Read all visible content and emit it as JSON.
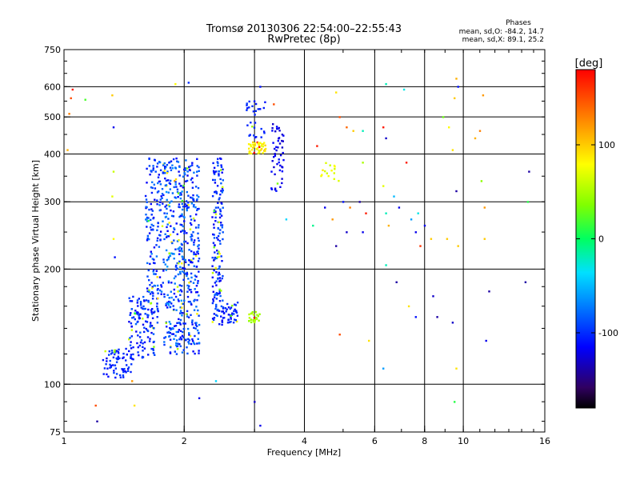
{
  "chart_data": {
    "type": "scatter",
    "title": "Tromsø 20130306 22:54:00–22:55:43",
    "subtitle": "RwPretec (8p)",
    "xlabel": "Frequency [MHz]",
    "ylabel": "Stationary phase Virtual Height [km]",
    "x_scale": "log2",
    "y_scale": "log",
    "xlim": [
      1,
      16
    ],
    "ylim": [
      75,
      750
    ],
    "x_ticks": [
      {
        "value": 1,
        "label": "1"
      },
      {
        "value": 2,
        "label": "2"
      },
      {
        "value": 4,
        "label": "4"
      },
      {
        "value": 6,
        "label": "6"
      },
      {
        "value": 8,
        "label": "8"
      },
      {
        "value": 10,
        "label": "10"
      },
      {
        "value": 16,
        "label": "16"
      }
    ],
    "y_ticks": [
      {
        "value": 75,
        "label": "75"
      },
      {
        "value": 100,
        "label": "100"
      },
      {
        "value": 200,
        "label": "200"
      },
      {
        "value": 300,
        "label": "300"
      },
      {
        "value": 400,
        "label": "400"
      },
      {
        "value": 500,
        "label": "500"
      },
      {
        "value": 600,
        "label": "600"
      },
      {
        "value": 750,
        "label": "750"
      }
    ],
    "x_grid": [
      2,
      3,
      4,
      6,
      8,
      10
    ],
    "y_grid": [
      100,
      200,
      300,
      400,
      500,
      600
    ],
    "grid": true,
    "phase_stats": {
      "header": "Phases",
      "o_line": "mean, sd,O: -84.2, 14.7",
      "x_line": "mean, sd,X:  89.1, 25.2"
    },
    "colorbar": {
      "label": "[deg]",
      "range": [
        -180,
        180
      ],
      "ticks": [
        {
          "value": 100,
          "label": "100"
        },
        {
          "value": 0,
          "label": "0"
        },
        {
          "value": -100,
          "label": "-100"
        }
      ]
    },
    "clusters": [
      {
        "f": [
          1.25,
          1.48
        ],
        "h": [
          104,
          124
        ],
        "n": 70,
        "phase": [
          -120,
          -90
        ]
      },
      {
        "f": [
          1.45,
          1.72
        ],
        "h": [
          116,
          170
        ],
        "n": 140,
        "phase": [
          -120,
          -80
        ]
      },
      {
        "f": [
          1.6,
          1.78
        ],
        "h": [
          170,
          390
        ],
        "n": 150,
        "phase": [
          -120,
          -70
        ]
      },
      {
        "f": [
          1.78,
          1.98
        ],
        "h": [
          120,
          390
        ],
        "n": 260,
        "phase": [
          -120,
          -60
        ]
      },
      {
        "f": [
          1.98,
          2.18
        ],
        "h": [
          120,
          390
        ],
        "n": 230,
        "phase": [
          -120,
          -70
        ]
      },
      {
        "f": [
          2.35,
          2.5
        ],
        "h": [
          140,
          390
        ],
        "n": 170,
        "phase": [
          -120,
          -80
        ]
      },
      {
        "f": [
          2.5,
          2.72
        ],
        "h": [
          145,
          165
        ],
        "n": 40,
        "phase": [
          -115,
          -90
        ]
      },
      {
        "f": [
          2.9,
          3.1
        ],
        "h": [
          145,
          155
        ],
        "n": 25,
        "phase": [
          40,
          60
        ]
      },
      {
        "f": [
          2.9,
          3.2
        ],
        "h": [
          400,
          430
        ],
        "n": 45,
        "phase": [
          70,
          100
        ]
      },
      {
        "f": [
          2.85,
          3.2
        ],
        "h": [
          440,
          560
        ],
        "n": 30,
        "phase": [
          -110,
          -95
        ]
      },
      {
        "f": [
          3.3,
          3.55
        ],
        "h": [
          320,
          480
        ],
        "n": 50,
        "phase": [
          -130,
          -110
        ]
      },
      {
        "f": [
          4.4,
          4.9
        ],
        "h": [
          340,
          380
        ],
        "n": 15,
        "phase": [
          60,
          90
        ]
      }
    ],
    "points": [
      {
        "f": 1.05,
        "h": 590,
        "phase": 170
      },
      {
        "f": 1.04,
        "h": 560,
        "phase": 150
      },
      {
        "f": 1.03,
        "h": 510,
        "phase": 130
      },
      {
        "f": 1.02,
        "h": 410,
        "phase": 110
      },
      {
        "f": 1.13,
        "h": 555,
        "phase": 20
      },
      {
        "f": 1.2,
        "h": 88,
        "phase": 150
      },
      {
        "f": 1.21,
        "h": 80,
        "phase": -140
      },
      {
        "f": 1.32,
        "h": 570,
        "phase": 100
      },
      {
        "f": 1.33,
        "h": 470,
        "phase": -120
      },
      {
        "f": 1.33,
        "h": 360,
        "phase": 60
      },
      {
        "f": 1.32,
        "h": 310,
        "phase": 70
      },
      {
        "f": 1.33,
        "h": 240,
        "phase": 80
      },
      {
        "f": 1.34,
        "h": 215,
        "phase": -110
      },
      {
        "f": 1.5,
        "h": 88,
        "phase": 90
      },
      {
        "f": 1.48,
        "h": 102,
        "phase": 120
      },
      {
        "f": 1.9,
        "h": 610,
        "phase": 80
      },
      {
        "f": 2.05,
        "h": 615,
        "phase": -100
      },
      {
        "f": 2.18,
        "h": 92,
        "phase": -120
      },
      {
        "f": 2.4,
        "h": 102,
        "phase": -40
      },
      {
        "f": 3.0,
        "h": 90,
        "phase": -130
      },
      {
        "f": 3.1,
        "h": 78,
        "phase": -120
      },
      {
        "f": 3.1,
        "h": 600,
        "phase": -110
      },
      {
        "f": 3.35,
        "h": 540,
        "phase": 150
      },
      {
        "f": 3.6,
        "h": 270,
        "phase": -40
      },
      {
        "f": 4.3,
        "h": 420,
        "phase": 170
      },
      {
        "f": 4.8,
        "h": 580,
        "phase": 90
      },
      {
        "f": 4.9,
        "h": 500,
        "phase": 150
      },
      {
        "f": 5.1,
        "h": 470,
        "phase": 140
      },
      {
        "f": 5.3,
        "h": 460,
        "phase": 100
      },
      {
        "f": 4.2,
        "h": 260,
        "phase": -10
      },
      {
        "f": 4.5,
        "h": 290,
        "phase": -120
      },
      {
        "f": 4.7,
        "h": 270,
        "phase": 120
      },
      {
        "f": 4.8,
        "h": 230,
        "phase": -140
      },
      {
        "f": 5.0,
        "h": 300,
        "phase": -110
      },
      {
        "f": 5.1,
        "h": 250,
        "phase": -130
      },
      {
        "f": 5.2,
        "h": 290,
        "phase": 130
      },
      {
        "f": 4.9,
        "h": 135,
        "phase": 150
      },
      {
        "f": 5.6,
        "h": 460,
        "phase": -20
      },
      {
        "f": 5.6,
        "h": 380,
        "phase": 50
      },
      {
        "f": 5.5,
        "h": 300,
        "phase": -140
      },
      {
        "f": 5.6,
        "h": 250,
        "phase": -120
      },
      {
        "f": 5.7,
        "h": 280,
        "phase": 170
      },
      {
        "f": 5.8,
        "h": 130,
        "phase": 90
      },
      {
        "f": 6.4,
        "h": 610,
        "phase": -20
      },
      {
        "f": 6.3,
        "h": 470,
        "phase": 170
      },
      {
        "f": 6.4,
        "h": 440,
        "phase": -130
      },
      {
        "f": 6.3,
        "h": 330,
        "phase": 70
      },
      {
        "f": 6.4,
        "h": 280,
        "phase": -20
      },
      {
        "f": 6.5,
        "h": 260,
        "phase": 110
      },
      {
        "f": 6.4,
        "h": 205,
        "phase": -20
      },
      {
        "f": 6.3,
        "h": 110,
        "phase": -60
      },
      {
        "f": 6.7,
        "h": 310,
        "phase": -50
      },
      {
        "f": 6.9,
        "h": 290,
        "phase": -120
      },
      {
        "f": 6.8,
        "h": 185,
        "phase": -140
      },
      {
        "f": 7.1,
        "h": 590,
        "phase": -30
      },
      {
        "f": 7.2,
        "h": 380,
        "phase": 170
      },
      {
        "f": 7.4,
        "h": 270,
        "phase": -60
      },
      {
        "f": 7.6,
        "h": 250,
        "phase": -120
      },
      {
        "f": 7.7,
        "h": 280,
        "phase": -30
      },
      {
        "f": 7.8,
        "h": 230,
        "phase": 160
      },
      {
        "f": 7.6,
        "h": 150,
        "phase": -110
      },
      {
        "f": 7.3,
        "h": 160,
        "phase": 90
      },
      {
        "f": 8.0,
        "h": 260,
        "phase": -120
      },
      {
        "f": 8.3,
        "h": 240,
        "phase": 100
      },
      {
        "f": 8.4,
        "h": 170,
        "phase": -130
      },
      {
        "f": 8.6,
        "h": 150,
        "phase": -140
      },
      {
        "f": 8.9,
        "h": 500,
        "phase": 30
      },
      {
        "f": 9.2,
        "h": 470,
        "phase": 80
      },
      {
        "f": 9.4,
        "h": 410,
        "phase": 90
      },
      {
        "f": 9.1,
        "h": 240,
        "phase": 100
      },
      {
        "f": 9.4,
        "h": 145,
        "phase": -130
      },
      {
        "f": 9.5,
        "h": 90,
        "phase": 10
      },
      {
        "f": 9.6,
        "h": 630,
        "phase": 110
      },
      {
        "f": 9.7,
        "h": 600,
        "phase": -110
      },
      {
        "f": 9.5,
        "h": 560,
        "phase": 100
      },
      {
        "f": 9.6,
        "h": 320,
        "phase": -140
      },
      {
        "f": 9.7,
        "h": 230,
        "phase": 100
      },
      {
        "f": 9.6,
        "h": 110,
        "phase": 90
      },
      {
        "f": 11.2,
        "h": 570,
        "phase": 120
      },
      {
        "f": 11.0,
        "h": 460,
        "phase": 130
      },
      {
        "f": 10.7,
        "h": 440,
        "phase": 110
      },
      {
        "f": 11.1,
        "h": 340,
        "phase": 40
      },
      {
        "f": 11.3,
        "h": 290,
        "phase": 120
      },
      {
        "f": 11.3,
        "h": 240,
        "phase": 100
      },
      {
        "f": 11.6,
        "h": 175,
        "phase": -140
      },
      {
        "f": 11.4,
        "h": 130,
        "phase": -120
      },
      {
        "f": 14.6,
        "h": 360,
        "phase": -140
      },
      {
        "f": 14.3,
        "h": 185,
        "phase": -140
      },
      {
        "f": 14.5,
        "h": 300,
        "phase": 10
      }
    ]
  }
}
